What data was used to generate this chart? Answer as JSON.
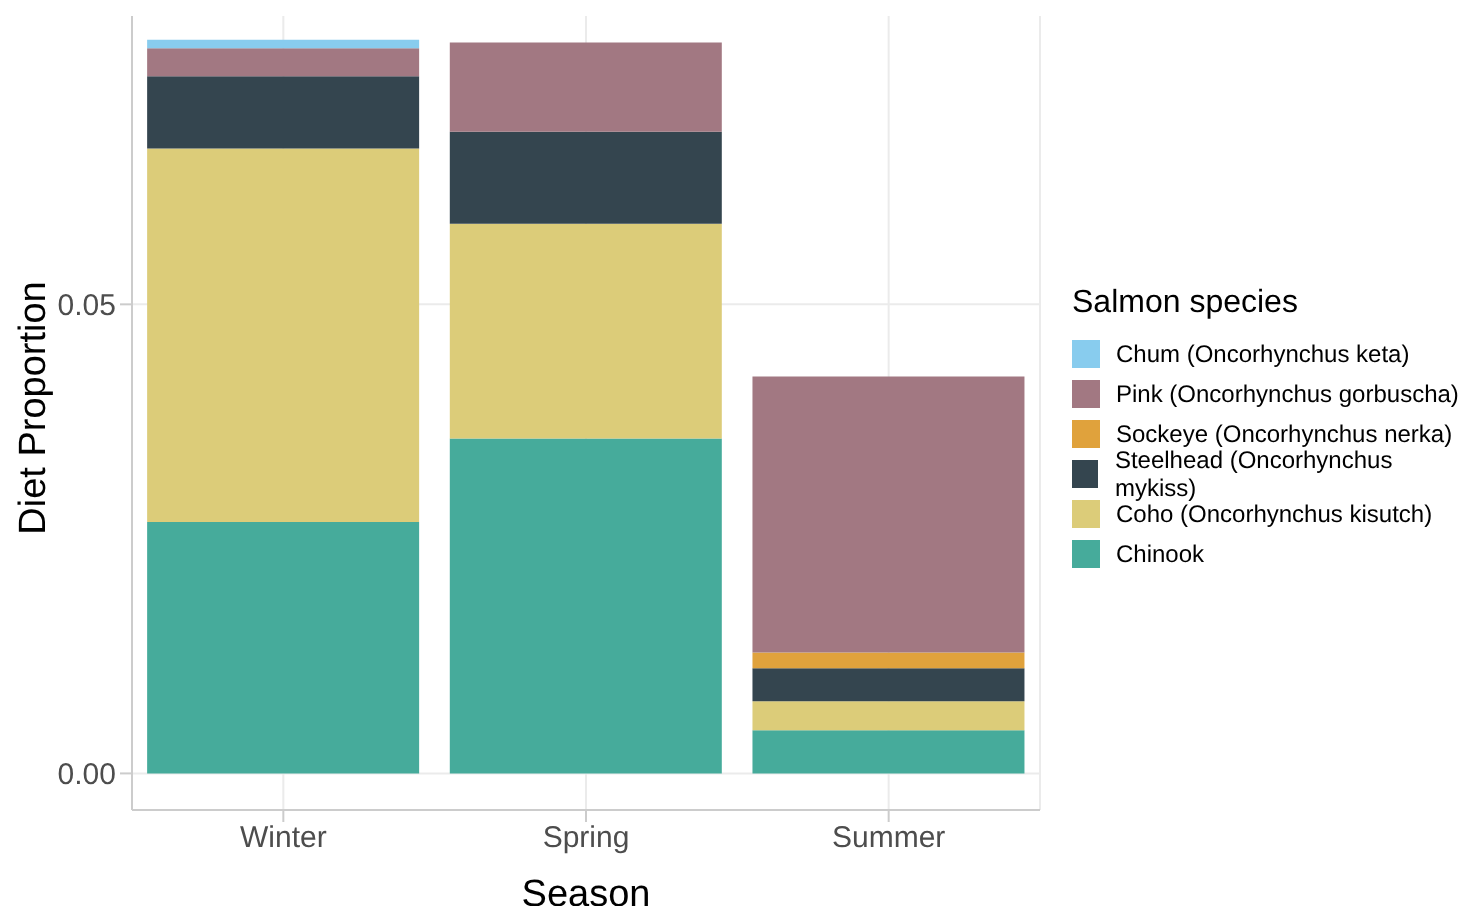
{
  "chart_data": {
    "type": "bar",
    "stacked": true,
    "xlabel": "Season",
    "ylabel": "Diet Proportion",
    "legend_title": "Salmon species",
    "legend": "right",
    "categories": [
      "Winter",
      "Spring",
      "Summer"
    ],
    "series": [
      {
        "name": "Chinook",
        "color": "#46ab9b",
        "values": [
          0.0268,
          0.0357,
          0.0046
        ]
      },
      {
        "name": "Coho (Oncorhynchus kisutch)",
        "color": "#dccc79",
        "values": [
          0.0398,
          0.0229,
          0.0031
        ]
      },
      {
        "name": "Steelhead (Oncorhynchus mykiss)",
        "color": "#34454f",
        "values": [
          0.0077,
          0.0098,
          0.0035
        ]
      },
      {
        "name": "Sockeye (Oncorhynchus nerka)",
        "color": "#e0a23c",
        "values": [
          null,
          null,
          0.0017
        ]
      },
      {
        "name": "Pink (Oncorhynchus gorbuscha)",
        "color": "#a27882",
        "values": [
          0.003,
          0.0095,
          0.0294
        ]
      },
      {
        "name": "Chum (Oncorhynchus keta)",
        "color": "#88ccee",
        "values": [
          0.0009,
          null,
          null
        ]
      }
    ],
    "ylim": [
      -0.0039,
      0.0818
    ],
    "yticks": [
      {
        "value": 0,
        "label": "0.00"
      },
      {
        "value": 0.05,
        "label": "0.05"
      }
    ],
    "grid": true
  }
}
